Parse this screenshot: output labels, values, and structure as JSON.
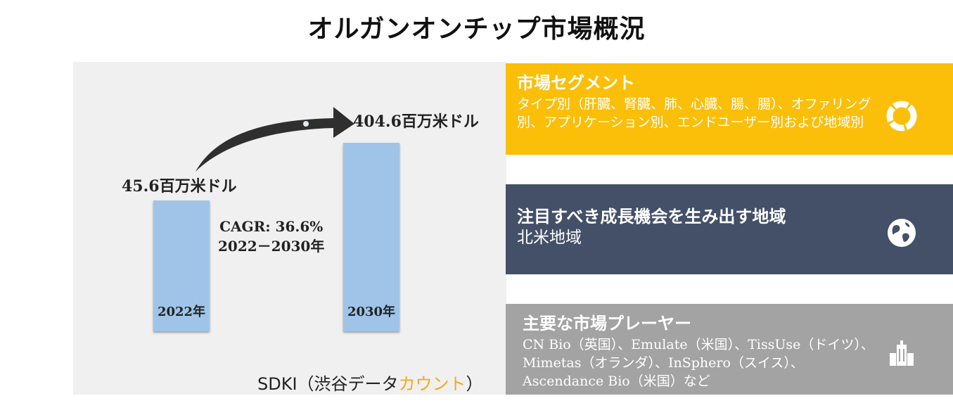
{
  "title": "オルガンオンチップ市場概況",
  "chart_data": {
    "type": "bar",
    "categories": [
      "2022年",
      "2030年"
    ],
    "values": [
      45.6,
      404.6
    ],
    "value_labels": [
      "45.6百万米ドル",
      "404.6百万米ドル"
    ],
    "annotation": [
      "CAGR: 36.6%",
      "2022－2030年"
    ]
  },
  "source": {
    "prefix": "SDKI（渋谷データ",
    "highlight": "カウント",
    "suffix": "）"
  },
  "panels": [
    {
      "title": "市場セグメント",
      "body": "タイプ別（肝臓、腎臓、肺、心臓、腸、腸）、オファリング別、アプリケーション別、エンドユーザー別および地域別",
      "icon": "donut-chart-icon",
      "color": "#fbbf0a"
    },
    {
      "title": "注目すべき成長機会を生み出す地域",
      "body": "北米地域",
      "icon": "globe-icon",
      "color": "#435067"
    },
    {
      "title": "主要な市場プレーヤー",
      "body": "CN Bio（英国）、Emulate（米国）、TissUse（ドイツ）、Mimetas（オランダ）、InSphero（スイス）、Ascendance Bio（米国）など",
      "icon": "buildings-icon",
      "color": "#a3a3a3"
    }
  ]
}
